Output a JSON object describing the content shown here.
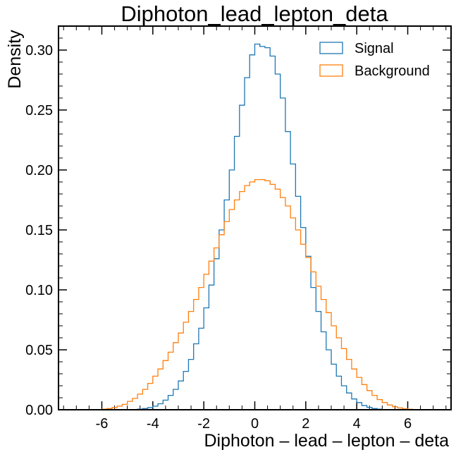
{
  "chart_data": {
    "type": "histogram-step",
    "title": "Diphoton_lead_lepton_deta",
    "xlabel": "Diphoton – lead – lepton – deta",
    "ylabel": "Density",
    "xlim": [
      -7.7,
      7.7
    ],
    "ylim": [
      0,
      0.32
    ],
    "xticks": [
      -6,
      -4,
      -2,
      0,
      2,
      4,
      6
    ],
    "xtick_labels": [
      "-6",
      "-4",
      "-2",
      "0",
      "2",
      "4",
      "6"
    ],
    "yticks": [
      0.0,
      0.05,
      0.1,
      0.15,
      0.2,
      0.25,
      0.3
    ],
    "ytick_labels": [
      "0.00",
      "0.05",
      "0.10",
      "0.15",
      "0.20",
      "0.25",
      "0.30"
    ],
    "legend_position": "top-right",
    "bins": {
      "start": -7.0,
      "width": 0.2,
      "count": 70
    },
    "series": [
      {
        "name": "Signal",
        "color": "#1f77b4",
        "values": [
          0,
          0,
          0,
          0,
          0,
          0,
          0,
          0,
          0,
          0,
          0,
          0.0002,
          0.0005,
          0.001,
          0.0018,
          0.003,
          0.005,
          0.008,
          0.012,
          0.017,
          0.024,
          0.032,
          0.042,
          0.055,
          0.068,
          0.085,
          0.104,
          0.126,
          0.15,
          0.175,
          0.2,
          0.228,
          0.254,
          0.277,
          0.296,
          0.305,
          0.303,
          0.302,
          0.295,
          0.28,
          0.26,
          0.232,
          0.205,
          0.178,
          0.152,
          0.128,
          0.102,
          0.082,
          0.065,
          0.05,
          0.038,
          0.028,
          0.02,
          0.014,
          0.009,
          0.006,
          0.0035,
          0.002,
          0.001,
          0.0005,
          0.0002,
          0,
          0,
          0,
          0,
          0,
          0,
          0,
          0,
          0
        ]
      },
      {
        "name": "Background",
        "color": "#ff7f0e",
        "values": [
          0,
          0,
          0,
          0,
          0,
          0.0005,
          0.001,
          0.0018,
          0.003,
          0.0045,
          0.007,
          0.0095,
          0.013,
          0.017,
          0.022,
          0.028,
          0.034,
          0.041,
          0.048,
          0.056,
          0.064,
          0.073,
          0.082,
          0.092,
          0.102,
          0.113,
          0.124,
          0.135,
          0.146,
          0.157,
          0.167,
          0.175,
          0.182,
          0.187,
          0.19,
          0.192,
          0.192,
          0.191,
          0.188,
          0.184,
          0.177,
          0.17,
          0.16,
          0.15,
          0.138,
          0.127,
          0.115,
          0.103,
          0.092,
          0.081,
          0.07,
          0.06,
          0.051,
          0.042,
          0.034,
          0.027,
          0.021,
          0.016,
          0.012,
          0.0085,
          0.006,
          0.004,
          0.0025,
          0.0015,
          0.0008,
          0.0004,
          0,
          0,
          0,
          0
        ]
      }
    ]
  }
}
